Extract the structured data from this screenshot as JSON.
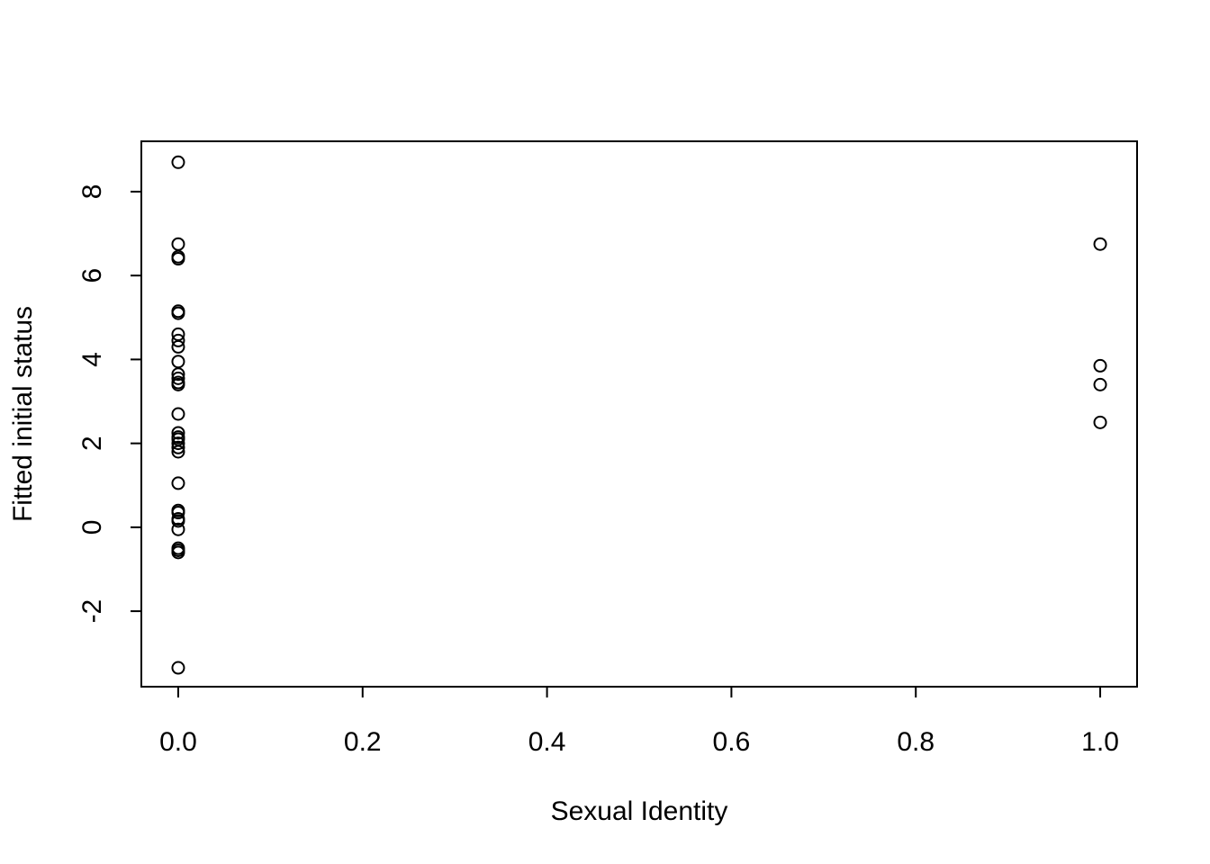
{
  "chart_data": {
    "type": "scatter",
    "title": "",
    "xlabel": "Sexual Identity",
    "ylabel": "Fitted initial status",
    "xlim": [
      -0.04,
      1.04
    ],
    "ylim": [
      -3.8,
      9.2
    ],
    "xticks": [
      0.0,
      0.2,
      0.4,
      0.6,
      0.8,
      1.0
    ],
    "xtick_labels": [
      "0.0",
      "0.2",
      "0.4",
      "0.6",
      "0.8",
      "1.0"
    ],
    "yticks": [
      -2,
      0,
      2,
      4,
      6,
      8
    ],
    "ytick_labels": [
      "-2",
      "0",
      "2",
      "4",
      "6",
      "8"
    ],
    "grid": false,
    "point_color": "#000000",
    "series": [
      {
        "x": [
          0,
          0,
          0,
          0,
          0,
          0,
          0,
          0,
          0,
          0,
          0,
          0,
          0,
          0,
          0,
          0,
          0,
          0,
          0,
          0,
          0,
          0,
          0,
          0,
          0,
          0,
          0,
          0,
          0,
          0,
          0,
          1,
          1,
          1,
          1
        ],
        "y": [
          8.7,
          6.75,
          6.45,
          6.4,
          5.15,
          5.1,
          4.6,
          4.45,
          4.3,
          3.95,
          3.65,
          3.55,
          3.45,
          3.4,
          2.7,
          2.25,
          2.1,
          2.0,
          1.9,
          1.8,
          1.05,
          0.4,
          0.2,
          0.15,
          -0.05,
          -0.5,
          -0.55,
          -0.6,
          -3.35,
          0.35,
          2.15,
          6.75,
          3.85,
          3.4,
          2.5
        ]
      }
    ]
  }
}
